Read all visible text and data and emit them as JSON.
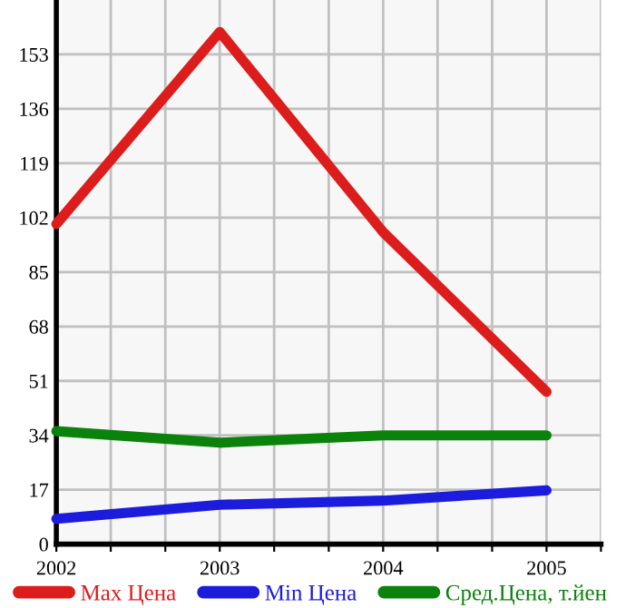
{
  "chart_data": {
    "type": "line",
    "x": [
      2002,
      2003,
      2004,
      2005
    ],
    "series": [
      {
        "name": "Max Цена",
        "color": "#dd1c1c",
        "values": [
          100,
          160,
          97.5,
          47.6
        ]
      },
      {
        "name": "Min Цена",
        "color": "#1c1cdd",
        "values": [
          7.9,
          12.3,
          13.6,
          16.8
        ]
      },
      {
        "name": "Сред.Цена, т.йен",
        "color": "#0b820b",
        "values": [
          35.3,
          31.7,
          34,
          34
        ]
      }
    ],
    "xlim": [
      2002,
      2005.333
    ],
    "ylim": [
      0,
      170
    ],
    "xticks": [
      2002,
      {
        "value": 2002.333,
        "label": null
      },
      {
        "value": 2002.667,
        "label": null
      },
      2003,
      {
        "value": 2003.333,
        "label": null
      },
      {
        "value": 2003.667,
        "label": null
      },
      2004,
      {
        "value": 2004.333,
        "label": null
      },
      {
        "value": 2004.667,
        "label": null
      },
      2005,
      {
        "value": 2005.333,
        "label": null
      }
    ],
    "yticks": [
      0,
      17,
      34,
      51,
      68,
      85,
      102,
      119,
      136,
      153
    ],
    "grid": true,
    "legend": "bottom",
    "marker": "none",
    "line_style": "solid"
  }
}
